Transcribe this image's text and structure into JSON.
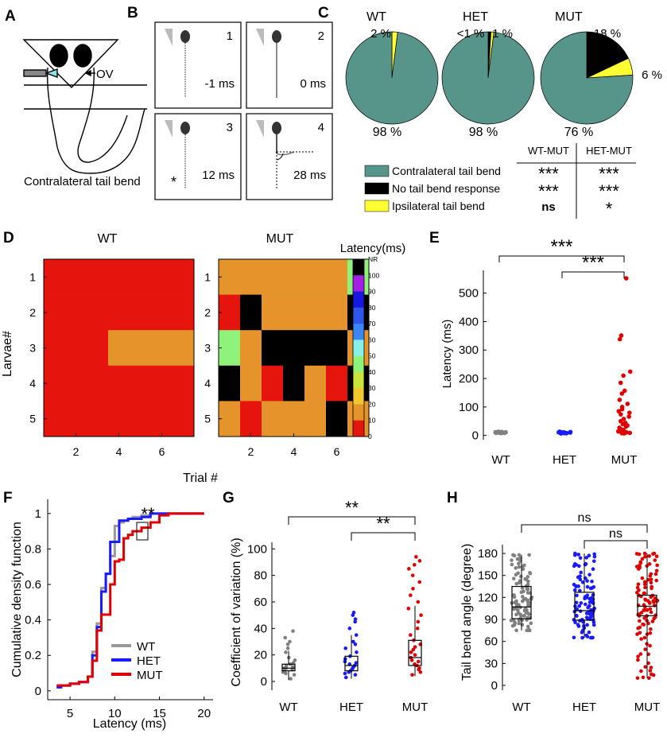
{
  "panels": {
    "A": {
      "letter": "A",
      "ov_label": "OV",
      "caption": "Contralateral tail bend"
    },
    "B": {
      "letter": "B",
      "frames": [
        {
          "num": "1",
          "time": "-1 ms",
          "star": ""
        },
        {
          "num": "2",
          "time": "0 ms",
          "star": ""
        },
        {
          "num": "3",
          "time": "12 ms",
          "star": "*"
        },
        {
          "num": "4",
          "time": "28 ms",
          "star": ""
        }
      ]
    },
    "C": {
      "letter": "C",
      "pies": [
        {
          "title": "WT",
          "labels": {
            "yellow": "2 %",
            "black": "",
            "teal": "98 %"
          }
        },
        {
          "title": "HET",
          "labels": {
            "yellow": "<1 %",
            "black": "1 %",
            "teal": "98 %"
          }
        },
        {
          "title": "MUT",
          "labels": {
            "yellow": "6 %",
            "black": "18 %",
            "teal": "76 %"
          }
        }
      ],
      "table_headers": [
        "WT-MUT",
        "HET-MUT"
      ],
      "legend": [
        {
          "label": "Contralateral tail bend",
          "color": "#579489",
          "wt_mut": "***",
          "het_mut": "***"
        },
        {
          "label": "No tail bend response",
          "color": "#000000",
          "wt_mut": "***",
          "het_mut": "***"
        },
        {
          "label": "Ipsilateral tail bend",
          "color": "#ffff33",
          "wt_mut": "ns",
          "het_mut": "*"
        }
      ]
    },
    "D": {
      "letter": "D",
      "titles": [
        "WT",
        "MUT"
      ],
      "ylabel": "Larvae#",
      "xlabel": "Trial #",
      "yticks": [
        "1",
        "2",
        "3",
        "4",
        "5"
      ],
      "xticks": [
        "2",
        "4",
        "6"
      ],
      "colorbar_title": "Latency(ms)",
      "colorbar_labels": [
        "NR",
        "100",
        "90",
        "80",
        "70",
        "60",
        "50",
        "40",
        "30",
        "20",
        "10",
        "0"
      ]
    },
    "E": {
      "letter": "E",
      "ylabel": "Latency (ms)",
      "sig": [
        "***",
        "***"
      ]
    },
    "F": {
      "letter": "F",
      "ylabel": "Cumulative density function",
      "xlabel": "Latency (ms)",
      "sig": "**"
    },
    "G": {
      "letter": "G",
      "ylabel": "Coefficient of variation (%)",
      "sig": [
        "**",
        "**"
      ]
    },
    "H": {
      "letter": "H",
      "ylabel": "Tail bend angle (degree)",
      "sig": [
        "ns",
        "ns"
      ]
    }
  },
  "chart_data": [
    {
      "panel": "C",
      "type": "pie",
      "pies": [
        {
          "title": "WT",
          "slices": [
            {
              "label": "Contralateral tail bend",
              "value": 98
            },
            {
              "label": "No tail bend response",
              "value": 0
            },
            {
              "label": "Ipsilateral tail bend",
              "value": 2
            }
          ]
        },
        {
          "title": "HET",
          "slices": [
            {
              "label": "Contralateral tail bend",
              "value": 98
            },
            {
              "label": "No tail bend response",
              "value": 1
            },
            {
              "label": "Ipsilateral tail bend",
              "value": 1
            }
          ]
        },
        {
          "title": "MUT",
          "slices": [
            {
              "label": "Contralateral tail bend",
              "value": 76
            },
            {
              "label": "No tail bend response",
              "value": 18
            },
            {
              "label": "Ipsilateral tail bend",
              "value": 6
            }
          ]
        }
      ],
      "colors": {
        "Contralateral tail bend": "#579489",
        "No tail bend response": "#000000",
        "Ipsilateral tail bend": "#ffff33"
      }
    },
    {
      "panel": "D",
      "type": "heatmap",
      "xlabel": "Trial #",
      "ylabel": "Larvae#",
      "clim": [
        0,
        100
      ],
      "nr_value": "NR",
      "colormap": [
        {
          "max": 10,
          "color": "#e5150d"
        },
        {
          "max": 20,
          "color": "#e4942b"
        },
        {
          "max": 30,
          "color": "#f2c72f"
        },
        {
          "max": 40,
          "color": "#c9e43a"
        },
        {
          "max": 50,
          "color": "#8ff27a"
        },
        {
          "max": 60,
          "color": "#86f0e8"
        },
        {
          "max": 70,
          "color": "#3b86f2"
        },
        {
          "max": 80,
          "color": "#2f56e8"
        },
        {
          "max": 90,
          "color": "#1a18e0"
        },
        {
          "max": 100,
          "color": "#a51ee5"
        }
      ],
      "matrices": [
        {
          "title": "WT",
          "rows": [
            [
              5,
              5,
              5,
              5,
              5,
              5,
              5
            ],
            [
              5,
              5,
              5,
              5,
              5,
              5,
              5
            ],
            [
              5,
              5,
              5,
              15,
              15,
              15,
              15
            ],
            [
              5,
              5,
              5,
              5,
              5,
              5,
              5
            ],
            [
              5,
              5,
              5,
              5,
              5,
              5,
              5
            ]
          ]
        },
        {
          "title": "MUT",
          "rows": [
            [
              15,
              15,
              15,
              15,
              15,
              15,
              45
            ],
            [
              5,
              "NR",
              15,
              15,
              15,
              15,
              "NR"
            ],
            [
              45,
              15,
              "NR",
              "NR",
              "NR",
              "NR",
              15
            ],
            [
              "NR",
              15,
              5,
              "NR",
              15,
              5,
              "NR"
            ],
            [
              15,
              5,
              15,
              15,
              15,
              "NR",
              15
            ]
          ]
        }
      ]
    },
    {
      "panel": "E",
      "type": "scatter",
      "categories": [
        "WT",
        "HET",
        "MUT"
      ],
      "ylabel": "Latency (ms)",
      "ylim": [
        -15,
        580
      ],
      "yticks": [
        0,
        100,
        200,
        300,
        400,
        500
      ],
      "series": [
        {
          "name": "WT",
          "color": "#808080",
          "values": [
            8,
            9,
            9,
            10,
            10,
            10,
            11,
            11,
            12,
            12,
            13,
            9,
            10,
            11,
            10
          ]
        },
        {
          "name": "HET",
          "color": "#1a1aff",
          "values": [
            7,
            8,
            9,
            9,
            10,
            10,
            11,
            11,
            12,
            13,
            9,
            10,
            12,
            11,
            8
          ]
        },
        {
          "name": "MUT",
          "color": "#e00000",
          "values": [
            552,
            351,
            338,
            224,
            210,
            185,
            157,
            147,
            125,
            111,
            100,
            92,
            85,
            80,
            74,
            66,
            58,
            50,
            44,
            40,
            35,
            31,
            27,
            23,
            19,
            16,
            14,
            12,
            11,
            10,
            9,
            8,
            8,
            7
          ]
        }
      ]
    },
    {
      "panel": "F",
      "type": "line",
      "xlabel": "Latency (ms)",
      "ylabel": "Cumulative density function",
      "xlim": [
        2.5,
        21
      ],
      "ylim": [
        -0.05,
        1.08
      ],
      "xticks": [
        5,
        10,
        15,
        20
      ],
      "yticks": [
        0,
        0.2,
        0.4,
        0.6,
        0.8,
        1
      ],
      "series": [
        {
          "name": "WT",
          "color": "#999999",
          "x": [
            3.5,
            4,
            5,
            6,
            7,
            7.5,
            8,
            8.5,
            9,
            9.5,
            10,
            10.5,
            11,
            11.5,
            12,
            13,
            14,
            15,
            16,
            20
          ],
          "y": [
            0.02,
            0.03,
            0.04,
            0.05,
            0.08,
            0.22,
            0.38,
            0.58,
            0.66,
            0.76,
            0.93,
            0.95,
            0.96,
            0.97,
            0.98,
            0.99,
            1,
            1,
            1,
            1
          ]
        },
        {
          "name": "HET",
          "color": "#1a1aff",
          "x": [
            3.5,
            4,
            5,
            6,
            7,
            7.5,
            8,
            8.5,
            9,
            9.5,
            10,
            10.5,
            11,
            11.5,
            12,
            13,
            14,
            15,
            16,
            20
          ],
          "y": [
            0.02,
            0.03,
            0.04,
            0.05,
            0.08,
            0.2,
            0.36,
            0.56,
            0.66,
            0.84,
            0.84,
            0.96,
            0.96,
            0.97,
            0.97,
            0.98,
            1,
            1,
            1,
            1
          ]
        },
        {
          "name": "MUT",
          "color": "#e00000",
          "x": [
            3.5,
            4,
            5,
            6,
            7,
            7.5,
            8,
            8.5,
            9,
            9.5,
            10,
            10.5,
            11,
            11.5,
            12,
            13,
            14,
            15,
            16,
            20
          ],
          "y": [
            0.03,
            0.03,
            0.04,
            0.05,
            0.08,
            0.17,
            0.34,
            0.43,
            0.43,
            0.6,
            0.73,
            0.74,
            0.86,
            0.88,
            0.9,
            0.92,
            0.95,
            0.99,
            1,
            1
          ]
        }
      ]
    },
    {
      "panel": "G",
      "type": "box",
      "categories": [
        "WT",
        "HET",
        "MUT"
      ],
      "ylabel": "Coefficient of variation (%)",
      "ylim": [
        -3,
        105
      ],
      "yticks": [
        0,
        20,
        40,
        60,
        80,
        100
      ],
      "series": [
        {
          "name": "WT",
          "color": "#808080",
          "box": [
            8,
            10,
            13
          ],
          "whisker": [
            1,
            23
          ],
          "points": [
            2,
            5,
            6,
            7,
            8,
            9,
            10,
            10,
            11,
            12,
            13,
            14,
            16,
            18,
            22,
            25,
            28,
            30,
            33,
            38
          ]
        },
        {
          "name": "HET",
          "color": "#1a1aff",
          "box": [
            8,
            12,
            19
          ],
          "whisker": [
            2,
            35
          ],
          "points": [
            3,
            5,
            6,
            7,
            8,
            9,
            10,
            11,
            12,
            13,
            14,
            15,
            17,
            19,
            22,
            25,
            28,
            30,
            35,
            40,
            45,
            47,
            50,
            52
          ]
        },
        {
          "name": "MUT",
          "color": "#e00000",
          "box": [
            12,
            18,
            31
          ],
          "whisker": [
            4,
            57
          ],
          "points": [
            5,
            7,
            9,
            10,
            12,
            13,
            15,
            16,
            18,
            20,
            22,
            24,
            26,
            28,
            31,
            35,
            40,
            45,
            50,
            55,
            60,
            65,
            70,
            75,
            80,
            85,
            88,
            91,
            94
          ]
        }
      ]
    },
    {
      "panel": "H",
      "type": "box",
      "categories": [
        "WT",
        "HET",
        "MUT"
      ],
      "ylabel": "Tail bend angle (degree)",
      "ylim": [
        0,
        192
      ],
      "yticks": [
        0,
        30,
        60,
        90,
        120,
        150,
        180
      ],
      "series": [
        {
          "name": "WT",
          "color": "#808080",
          "box": [
            91,
            107,
            135
          ],
          "whisker": [
            75,
            178
          ],
          "points": [
            76,
            80,
            84,
            88,
            91,
            94,
            97,
            100,
            103,
            106,
            108,
            110,
            113,
            116,
            120,
            125,
            130,
            135,
            140,
            145,
            150,
            158,
            165,
            172,
            178
          ]
        },
        {
          "name": "HET",
          "color": "#1a1aff",
          "box": [
            89,
            102,
            127
          ],
          "whisker": [
            65,
            180
          ],
          "points": [
            65,
            70,
            75,
            80,
            85,
            89,
            92,
            95,
            98,
            101,
            104,
            107,
            110,
            114,
            118,
            122,
            127,
            132,
            138,
            145,
            152,
            160,
            168,
            175,
            180
          ]
        },
        {
          "name": "MUT",
          "color": "#e00000",
          "box": [
            95,
            108,
            123
          ],
          "whisker": [
            10,
            180
          ],
          "points": [
            8,
            20,
            30,
            45,
            60,
            70,
            80,
            88,
            92,
            96,
            100,
            104,
            108,
            112,
            116,
            120,
            124,
            130,
            136,
            142,
            150,
            158,
            165,
            172,
            178,
            180
          ]
        }
      ]
    }
  ]
}
